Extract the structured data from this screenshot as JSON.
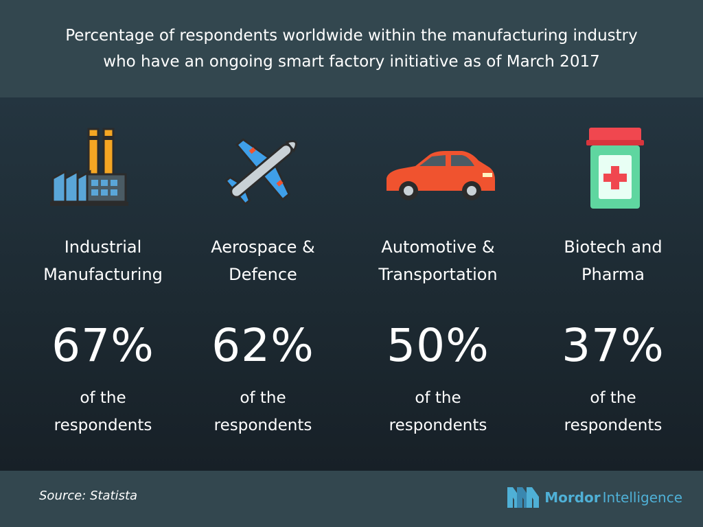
{
  "header": {
    "title_line1": "Percentage of respondents worldwide within the manufacturing industry",
    "title_line2": "who have an ongoing smart factory initiative as of March 2017"
  },
  "chart_data": {
    "type": "table",
    "title": "Percentage of respondents worldwide within the manufacturing industry who have an ongoing smart factory initiative as of March 2017",
    "categories": [
      "Industrial Manufacturing",
      "Aerospace & Defence",
      "Automotive & Transportation",
      "Biotech and Pharma"
    ],
    "values": [
      67,
      62,
      50,
      37
    ],
    "unit": "%",
    "items": [
      {
        "line1": "Industrial",
        "line2": "Manufacturing",
        "value": 67,
        "value_label": "67%",
        "note1": "of the",
        "note2": "respondents",
        "icon": "factory-icon"
      },
      {
        "line1": "Aerospace &",
        "line2": "Defence",
        "value": 62,
        "value_label": "62%",
        "note1": "of the",
        "note2": "respondents",
        "icon": "airplane-icon"
      },
      {
        "line1": "Automotive &",
        "line2": "Transportation",
        "value": 50,
        "value_label": "50%",
        "note1": "of the",
        "note2": "respondents",
        "icon": "car-icon"
      },
      {
        "line1": "Biotech and",
        "line2": "Pharma",
        "value": 37,
        "value_label": "37%",
        "note1": "of the",
        "note2": "respondents",
        "icon": "medicine-bottle-icon"
      }
    ]
  },
  "footer": {
    "source": "Source: Statista",
    "logo_word1": "Mordor",
    "logo_word2": "Intelligence"
  },
  "colors": {
    "background": "#1f2c35",
    "header_band": "#33474f",
    "logo_blue": "#4fb0d6",
    "factory_orange": "#f5a623",
    "factory_blue": "#5aa6d8",
    "airplane_blue": "#3f9fe8",
    "car_red": "#f0532f",
    "bottle_green": "#5fd6a0",
    "bottle_cap_red": "#f0474f"
  }
}
